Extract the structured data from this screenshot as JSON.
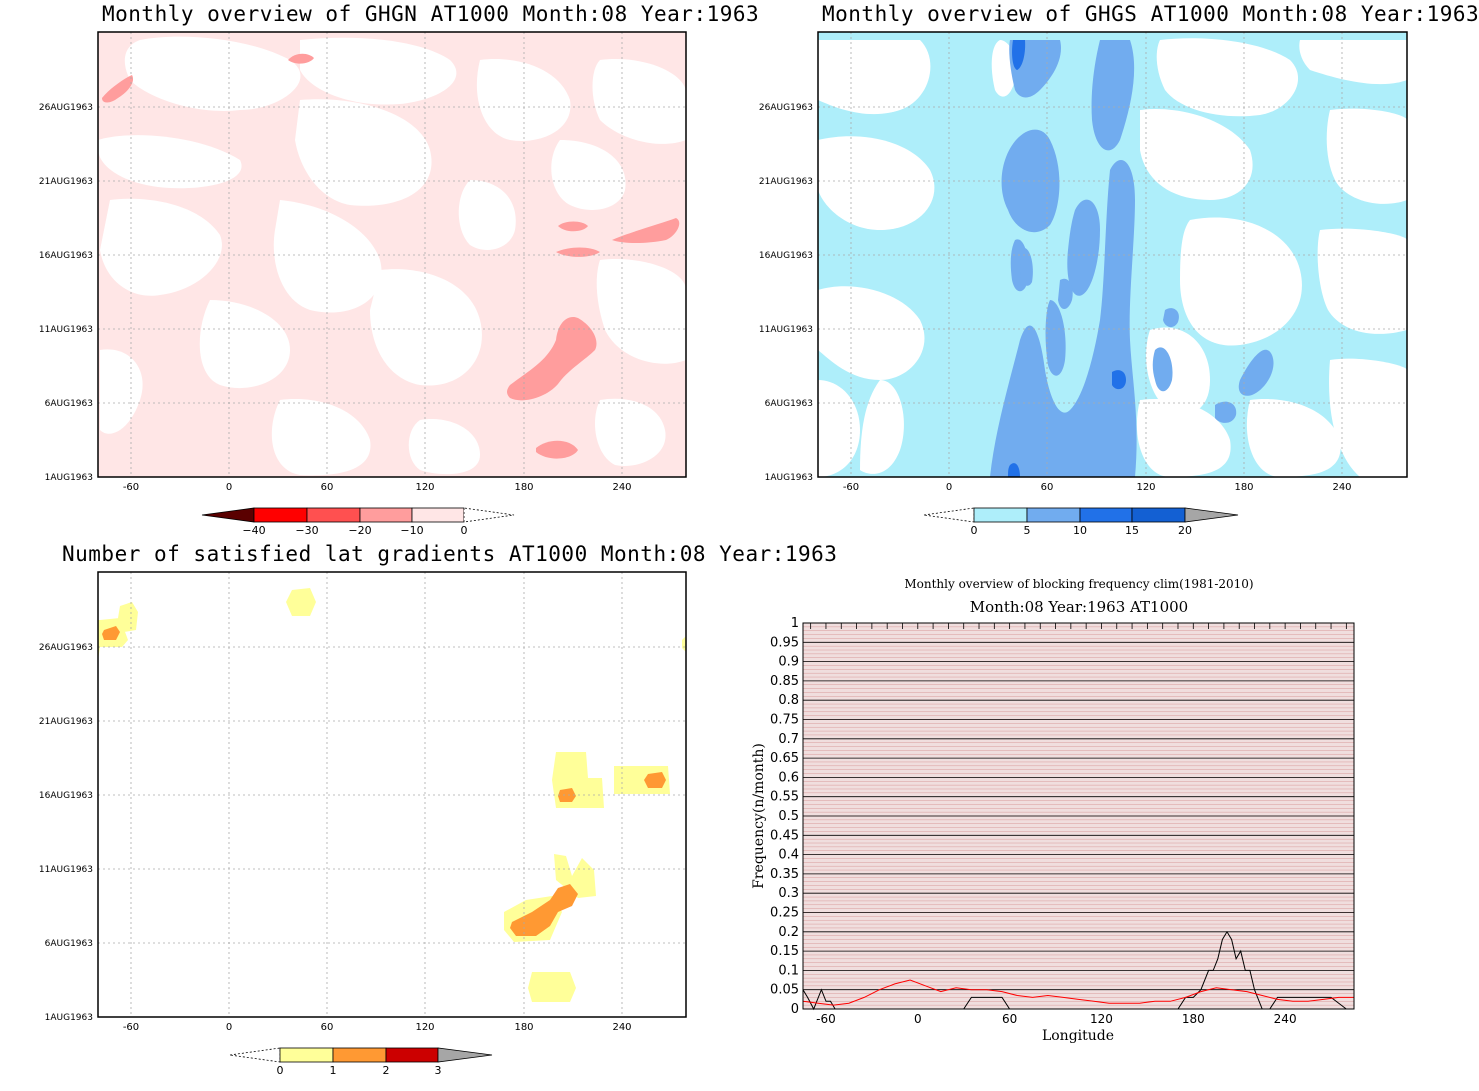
{
  "colors": {
    "ghgn_light": "#ffe6e6",
    "ghgn_mid": "#ff9d9d",
    "ghgs_light": "#aeeefa",
    "ghgs_mid": "#71acef",
    "ghgs_dark": "#2171e8",
    "ghgs_darker": "#1360d3",
    "sat_yellow": "#ffff99",
    "sat_orange": "#ff9933",
    "sat_red": "#cc0000",
    "grey": "#a6a6a6"
  },
  "panels": {
    "ghgn": {
      "title": "Monthly overview of GHGN AT1000 Month:08 Year:1963",
      "y_ticks": [
        "26AUG1963",
        "21AUG1963",
        "16AUG1963",
        "11AUG1963",
        "6AUG1963",
        "1AUG1963"
      ],
      "x_ticks": [
        "-60",
        "0",
        "60",
        "120",
        "180",
        "240"
      ],
      "colorbar_labels": [
        "−40",
        "−30",
        "−20",
        "−10",
        "0"
      ]
    },
    "ghgs": {
      "title": "Monthly overview of GHGS AT1000 Month:08 Year:1963",
      "y_ticks": [
        "26AUG1963",
        "21AUG1963",
        "16AUG1963",
        "11AUG1963",
        "6AUG1963",
        "1AUG1963"
      ],
      "x_ticks": [
        "-60",
        "0",
        "60",
        "120",
        "180",
        "240"
      ],
      "colorbar_labels": [
        "0",
        "5",
        "10",
        "15",
        "20"
      ]
    },
    "sat": {
      "title": "Number of satisfied lat gradients AT1000 Month:08 Year:1963",
      "y_ticks": [
        "26AUG1963",
        "21AUG1963",
        "16AUG1963",
        "11AUG1963",
        "6AUG1963",
        "1AUG1963"
      ],
      "x_ticks": [
        "-60",
        "0",
        "60",
        "120",
        "180",
        "240"
      ],
      "colorbar_labels": [
        "0",
        "1",
        "2",
        "3"
      ]
    },
    "freq": {
      "title": "Monthly overview of blocking frequency clim(1981-2010)",
      "subtitle": "Month:08 Year:1963  AT1000",
      "xlabel": "Longitude",
      "ylabel": "Frequency(n/month)",
      "y_ticks": [
        "1",
        "0.95",
        "0.9",
        "0.85",
        "0.8",
        "0.75",
        "0.7",
        "0.65",
        "0.6",
        "0.55",
        "0.5",
        "0.45",
        "0.4",
        "0.35",
        "0.3",
        "0.25",
        "0.2",
        "0.15",
        "0.1",
        "0.05",
        "0"
      ],
      "x_ticks": [
        "-60",
        "0",
        "60",
        "120",
        "180",
        "240"
      ]
    }
  },
  "chart_data": [
    {
      "type": "heatmap",
      "title": "Monthly overview of GHGN AT1000 Month:08 Year:1963",
      "xlim": [
        -75,
        285
      ],
      "x_ticks": [
        -60,
        0,
        60,
        120,
        180,
        240
      ],
      "y_ticks": [
        "1AUG1963",
        "6AUG1963",
        "11AUG1963",
        "16AUG1963",
        "21AUG1963",
        "26AUG1963"
      ],
      "colorbar_levels": [
        -40,
        -30,
        -20,
        -10,
        0
      ],
      "colorbar_colors": [
        "#5a0000",
        "#ff0000",
        "#ff5050",
        "#ff9d9d",
        "#ffe6e6"
      ]
    },
    {
      "type": "heatmap",
      "title": "Monthly overview of GHGS AT1000 Month:08 Year:1963",
      "xlim": [
        -75,
        285
      ],
      "x_ticks": [
        -60,
        0,
        60,
        120,
        180,
        240
      ],
      "y_ticks": [
        "1AUG1963",
        "6AUG1963",
        "11AUG1963",
        "16AUG1963",
        "21AUG1963",
        "26AUG1963"
      ],
      "colorbar_levels": [
        0,
        5,
        10,
        15,
        20
      ],
      "colorbar_colors": [
        "#aeeefa",
        "#71acef",
        "#2171e8",
        "#1360d3",
        "#a6a6a6"
      ]
    },
    {
      "type": "heatmap",
      "title": "Number of satisfied lat gradients AT1000 Month:08 Year:1963",
      "xlim": [
        -75,
        285
      ],
      "x_ticks": [
        -60,
        0,
        60,
        120,
        180,
        240
      ],
      "y_ticks": [
        "1AUG1963",
        "6AUG1963",
        "11AUG1963",
        "16AUG1963",
        "21AUG1963",
        "26AUG1963"
      ],
      "colorbar_levels": [
        0,
        1,
        2,
        3
      ],
      "colorbar_colors": [
        "#ffff99",
        "#ff9933",
        "#cc0000",
        "#a6a6a6"
      ]
    },
    {
      "type": "line",
      "title": "Monthly overview of blocking frequency clim(1981-2010)",
      "subtitle": "Month:08 Year:1963  AT1000",
      "xlabel": "Longitude",
      "ylabel": "Frequency(n/month)",
      "xlim": [
        -75,
        285
      ],
      "ylim": [
        0,
        1
      ],
      "x_ticks": [
        -60,
        0,
        60,
        120,
        180,
        240
      ],
      "y_ticks": [
        0,
        0.05,
        0.1,
        0.15,
        0.2,
        0.25,
        0.3,
        0.35,
        0.4,
        0.45,
        0.5,
        0.55,
        0.6,
        0.65,
        0.7,
        0.75,
        0.8,
        0.85,
        0.9,
        0.95,
        1
      ],
      "series": [
        {
          "color": "#000000",
          "x": [
            -75,
            -72,
            -68,
            -63,
            -60,
            -57,
            -54,
            -50,
            -40,
            -30,
            -20,
            -10,
            0,
            10,
            20,
            30,
            35,
            40,
            45,
            50,
            55,
            60,
            70,
            80,
            90,
            100,
            110,
            120,
            130,
            140,
            150,
            160,
            170,
            175,
            180,
            185,
            190,
            193,
            196,
            199,
            202,
            205,
            208,
            211,
            214,
            217,
            220,
            225,
            230,
            235,
            240,
            250,
            260,
            270,
            280
          ],
          "y": [
            0.05,
            0.03,
            0.0,
            0.05,
            0.02,
            0.02,
            0.0,
            0.0,
            0.0,
            0.0,
            0.0,
            0.0,
            0.0,
            0.0,
            0.0,
            0.0,
            0.03,
            0.03,
            0.03,
            0.03,
            0.03,
            0.0,
            0.0,
            0.0,
            0.0,
            0.0,
            0.0,
            0.0,
            0.0,
            0.0,
            0.0,
            0.0,
            0.0,
            0.03,
            0.03,
            0.05,
            0.1,
            0.1,
            0.13,
            0.18,
            0.2,
            0.18,
            0.13,
            0.15,
            0.1,
            0.1,
            0.05,
            0.0,
            0.0,
            0.03,
            0.03,
            0.03,
            0.03,
            0.03,
            0.0
          ]
        },
        {
          "color": "#ff0000",
          "x": [
            -75,
            -65,
            -55,
            -45,
            -35,
            -25,
            -15,
            -5,
            5,
            15,
            25,
            35,
            45,
            55,
            65,
            75,
            85,
            95,
            105,
            115,
            125,
            135,
            145,
            155,
            165,
            175,
            185,
            195,
            205,
            215,
            225,
            235,
            245,
            255,
            265,
            275,
            285
          ],
          "y": [
            0.02,
            0.015,
            0.01,
            0.015,
            0.03,
            0.05,
            0.065,
            0.075,
            0.06,
            0.045,
            0.055,
            0.05,
            0.05,
            0.045,
            0.035,
            0.03,
            0.035,
            0.03,
            0.025,
            0.02,
            0.015,
            0.015,
            0.015,
            0.02,
            0.02,
            0.03,
            0.045,
            0.055,
            0.05,
            0.045,
            0.035,
            0.025,
            0.02,
            0.02,
            0.025,
            0.03,
            0.03
          ]
        }
      ]
    }
  ]
}
